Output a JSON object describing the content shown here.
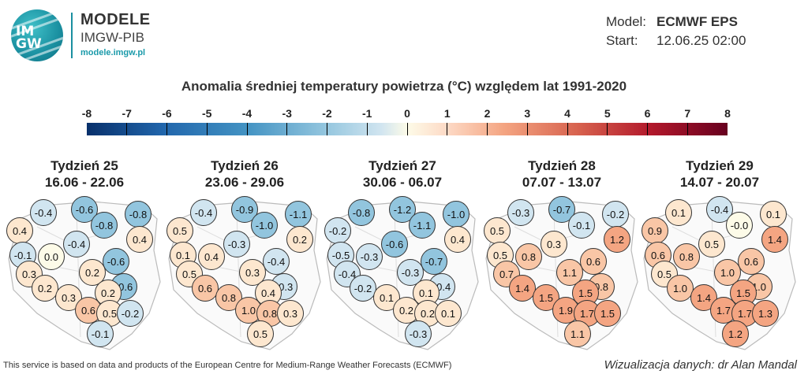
{
  "header": {
    "logo_text": "IM\nGW",
    "brand_title": "MODELE",
    "brand_sub": "IMGW-PIB",
    "brand_url": "modele.imgw.pl",
    "model_key": "Model:",
    "model_val": "ECMWF EPS",
    "start_key": "Start:",
    "start_val": "12.06.25 02:00"
  },
  "title": "Anomalia średniej temperatury powietrza (°C) względem lat 1991-2020",
  "scale": [
    "-8",
    "-7",
    "-6",
    "-5",
    "-4",
    "-3",
    "-2",
    "-1",
    "0",
    "1",
    "2",
    "3",
    "4",
    "5",
    "6",
    "7",
    "8"
  ],
  "colors": {
    "neg_strong": "#92c5de",
    "neg_weak": "#d1e5f0",
    "zero": "#fdfbe8",
    "pos_weak": "#fde7cf",
    "pos_mid": "#f9c6a6",
    "pos_strong": "#f4a582"
  },
  "weeks": [
    {
      "name": "Tydzień 25",
      "range": "16.06 - 22.06",
      "values": [
        "-0.4",
        "-0.6",
        "-0.8",
        "0.4",
        "-0.8",
        "0.4",
        "-0.4",
        "-0.1",
        "0.0",
        "-0.6",
        "0.3",
        "0.2",
        "0.2",
        "-0.6",
        "0.2",
        "0.3",
        "0.6",
        "0.5",
        "-0.2",
        "-0.1"
      ]
    },
    {
      "name": "Tydzień 26",
      "range": "23.06 - 29.06",
      "values": [
        "-0.4",
        "-0.9",
        "-1.1",
        "0.5",
        "-1.0",
        "0.2",
        "-0.3",
        "0.1",
        "0.4",
        "-0.4",
        "0.5",
        "0.3",
        "0.6",
        "-0.3",
        "0.4",
        "0.8",
        "1.0",
        "0.8",
        "0.3",
        "0.5"
      ]
    },
    {
      "name": "Tydzień 27",
      "range": "30.06 - 06.07",
      "values": [
        "-0.8",
        "-1.2",
        "-1.0",
        "-0.2",
        "-1.1",
        "0.4",
        "-0.6",
        "-0.5",
        "-0.3",
        "-0.7",
        "-0.4",
        "-0.3",
        "-0.2",
        "-0.4",
        "0.1",
        "0.1",
        "0.2",
        "0.2",
        "0.1",
        "-0.3"
      ]
    },
    {
      "name": "Tydzień 28",
      "range": "07.07 - 13.07",
      "values": [
        "-0.3",
        "-0.7",
        "-0.2",
        "0.5",
        "-0.1",
        "1.2",
        "0.3",
        "0.5",
        "0.8",
        "0.6",
        "0.7",
        "1.1",
        "1.4",
        "0.8",
        "1.5",
        "1.5",
        "1.9",
        "1.7",
        "1.5",
        "1.1"
      ]
    },
    {
      "name": "Tydzień 29",
      "range": "14.07 - 20.07",
      "values": [
        "0.1",
        "-0.4",
        "0.1",
        "0.9",
        "-0.0",
        "1.4",
        "0.5",
        "0.6",
        "0.8",
        "0.6",
        "0.5",
        "1.0",
        "1.0",
        "1.0",
        "1.5",
        "1.4",
        "1.7",
        "1.7",
        "1.3",
        "1.2"
      ]
    }
  ],
  "footer": "This service is based on data and products of the European Centre for Medium-Range Weather Forecasts (ECMWF)",
  "credit": "Wizualizacja danych: dr Alan Mandal"
}
